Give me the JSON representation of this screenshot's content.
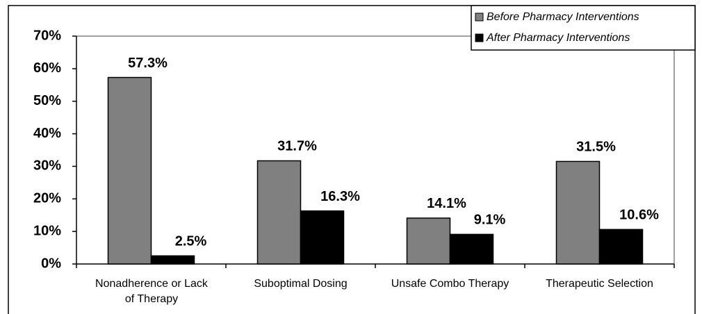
{
  "chart_data": {
    "type": "bar",
    "categories": [
      "Nonadherence or Lack of Therapy",
      "Suboptimal Dosing",
      "Unsafe Combo Therapy",
      "Therapeutic Selection"
    ],
    "series": [
      {
        "name": "Before Pharmacy Interventions",
        "color": "#808080",
        "values": [
          57.3,
          31.7,
          14.1,
          31.5
        ],
        "value_labels": [
          "57.3%",
          "31.7%",
          "14.1%",
          "31.5%"
        ]
      },
      {
        "name": "After Pharmacy Interventions",
        "color": "#000000",
        "values": [
          2.5,
          16.3,
          9.1,
          10.6
        ],
        "value_labels": [
          "2.5%",
          "16.3%",
          "9.1%",
          "10.6%"
        ]
      }
    ],
    "ylim": [
      0,
      70
    ],
    "yticks": [
      {
        "value": 0,
        "label": "0%"
      },
      {
        "value": 10,
        "label": "10%"
      },
      {
        "value": 20,
        "label": "20%"
      },
      {
        "value": 30,
        "label": "30%"
      },
      {
        "value": 40,
        "label": "40%"
      },
      {
        "value": 50,
        "label": "50%"
      },
      {
        "value": 60,
        "label": "60%"
      },
      {
        "value": 70,
        "label": "70%"
      }
    ],
    "legend": "top-right"
  }
}
